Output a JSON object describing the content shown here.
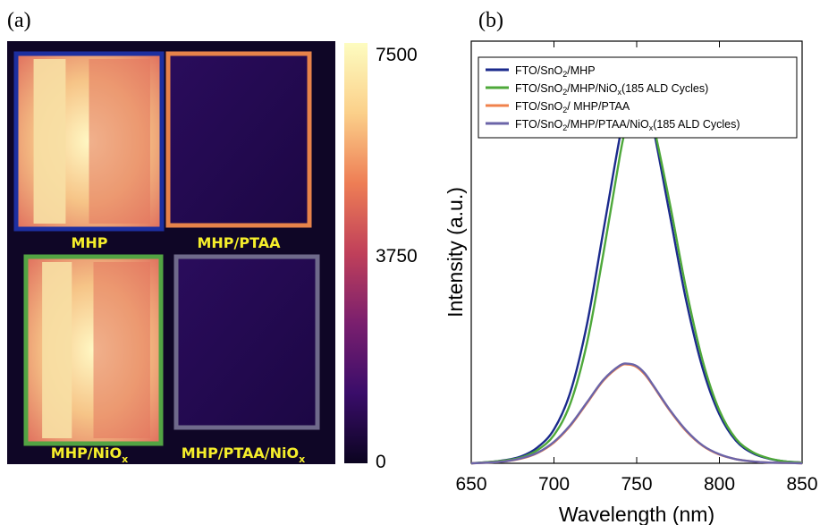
{
  "panel_a": {
    "label": "(a)",
    "colorbar": {
      "max_label": "7500",
      "mid_label": "3750",
      "min_label": "0",
      "colors": [
        "#0b0420",
        "#3a0d6a",
        "#7a1f6e",
        "#c0405a",
        "#ee7e55",
        "#fbd08a",
        "#fdfcc0"
      ]
    },
    "tiles": [
      {
        "name": "MHP",
        "label_main": "MHP",
        "label_sub": "",
        "border": "#1d2fa0",
        "bright": true
      },
      {
        "name": "MHP/PTAA",
        "label_main": "MHP/PTAA",
        "label_sub": "",
        "border": "#e7834a",
        "bright": false
      },
      {
        "name": "MHP/NiOx",
        "label_main": "MHP/NiO",
        "label_sub": "x",
        "border": "#52a343",
        "bright": true
      },
      {
        "name": "MHP/PTAA/NiOx",
        "label_main": "MHP/PTAA/NiO",
        "label_sub": "x",
        "border": "#6f6a8b",
        "bright": false
      }
    ],
    "tile_label_color": "#f5ee2b"
  },
  "chart_data": {
    "type": "line",
    "panel_label": "(b)",
    "xlabel": "Wavelength (nm)",
    "ylabel": "Intensity (a.u.)",
    "xlim": [
      650,
      850
    ],
    "ylim": [
      0,
      1.12
    ],
    "xticks": [
      "650",
      "700",
      "750",
      "800",
      "850"
    ],
    "legend_position": "top-left",
    "series": [
      {
        "name": "FTO/SnO2/MHP",
        "legend": {
          "parts": [
            "FTO/SnO",
            "2",
            "/MHP"
          ]
        },
        "color": "#1b2a8c",
        "x": [
          650,
          660,
          670,
          680,
          690,
          700,
          710,
          720,
          730,
          740,
          745,
          750,
          755,
          760,
          770,
          780,
          790,
          800,
          810,
          820,
          830,
          840,
          850
        ],
        "y": [
          0.0,
          0.003,
          0.008,
          0.018,
          0.042,
          0.09,
          0.19,
          0.37,
          0.62,
          0.87,
          0.96,
          1.0,
          0.97,
          0.89,
          0.66,
          0.43,
          0.25,
          0.13,
          0.06,
          0.027,
          0.012,
          0.005,
          0.002
        ]
      },
      {
        "name": "FTO/SnO2/MHP/NiOx(185 ALD Cycles)",
        "legend": {
          "parts": [
            "FTO/SnO",
            "2",
            "/MHP/NiO",
            "x",
            "(185 ALD Cycles)"
          ]
        },
        "color": "#4ea83a",
        "x": [
          650,
          660,
          670,
          680,
          690,
          700,
          710,
          720,
          730,
          740,
          745,
          750,
          755,
          760,
          770,
          780,
          790,
          800,
          810,
          820,
          830,
          840,
          850
        ],
        "y": [
          0.0,
          0.003,
          0.007,
          0.015,
          0.035,
          0.075,
          0.16,
          0.32,
          0.56,
          0.82,
          0.92,
          0.985,
          0.97,
          0.9,
          0.69,
          0.46,
          0.27,
          0.14,
          0.065,
          0.03,
          0.013,
          0.005,
          0.002
        ]
      },
      {
        "name": "FTO/SnO2/ MHP/PTAA",
        "legend": {
          "parts": [
            "FTO/SnO",
            "2",
            "/ MHP/PTAA"
          ]
        },
        "color": "#f0824c",
        "x": [
          650,
          660,
          670,
          680,
          690,
          700,
          710,
          720,
          730,
          740,
          745,
          750,
          755,
          760,
          770,
          780,
          790,
          800,
          810,
          820,
          830,
          840,
          850
        ],
        "y": [
          0.0,
          0.002,
          0.005,
          0.012,
          0.027,
          0.055,
          0.1,
          0.16,
          0.22,
          0.258,
          0.262,
          0.255,
          0.235,
          0.205,
          0.14,
          0.085,
          0.046,
          0.023,
          0.011,
          0.005,
          0.002,
          0.001,
          0.0
        ]
      },
      {
        "name": "FTO/SnO2/MHP/PTAA/NiOx(185 ALD Cycles)",
        "legend": {
          "parts": [
            "FTO/SnO",
            "2",
            "/MHP/PTAA/NiO",
            "x",
            "(185 ALD Cycles)"
          ]
        },
        "color": "#6b64a8",
        "x": [
          650,
          660,
          670,
          680,
          690,
          700,
          710,
          720,
          730,
          740,
          745,
          750,
          755,
          760,
          770,
          780,
          790,
          800,
          810,
          820,
          830,
          840,
          850
        ],
        "y": [
          0.0,
          0.002,
          0.005,
          0.013,
          0.028,
          0.057,
          0.102,
          0.162,
          0.222,
          0.26,
          0.264,
          0.258,
          0.238,
          0.207,
          0.142,
          0.087,
          0.047,
          0.024,
          0.011,
          0.005,
          0.002,
          0.001,
          0.0
        ]
      }
    ]
  }
}
